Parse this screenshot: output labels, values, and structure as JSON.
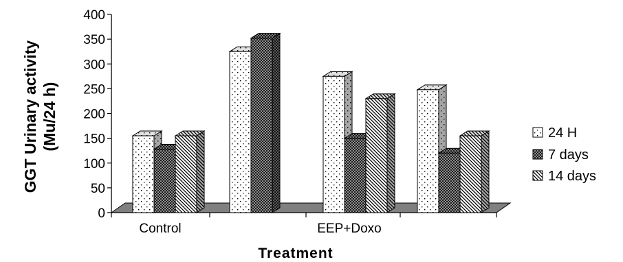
{
  "chart_data": {
    "type": "bar",
    "style": "3d-clustered-column",
    "categories": [
      "Control",
      "",
      "EEP+Doxo",
      ""
    ],
    "series": [
      {
        "name": "24 H",
        "values": [
          155,
          325,
          275,
          248
        ],
        "pattern": "dots",
        "color": "#ffffff"
      },
      {
        "name": "7 days",
        "values": [
          128,
          352,
          150,
          120
        ],
        "pattern": "crosshatch",
        "color": "#8c8c8c"
      },
      {
        "name": "14 days",
        "values": [
          155,
          null,
          230,
          155
        ],
        "pattern": "diagonal",
        "color": "#d0d0d0"
      }
    ],
    "ylabel_line1": "GGT Urinary activity",
    "ylabel_line2": "(Mu/24 h)",
    "xlabel": "Treatment",
    "ylim": [
      0,
      400
    ],
    "yticks": [
      "0",
      "50",
      "100",
      "150",
      "200",
      "250",
      "300",
      "350",
      "400"
    ],
    "grid": false,
    "legend_position": "right"
  }
}
